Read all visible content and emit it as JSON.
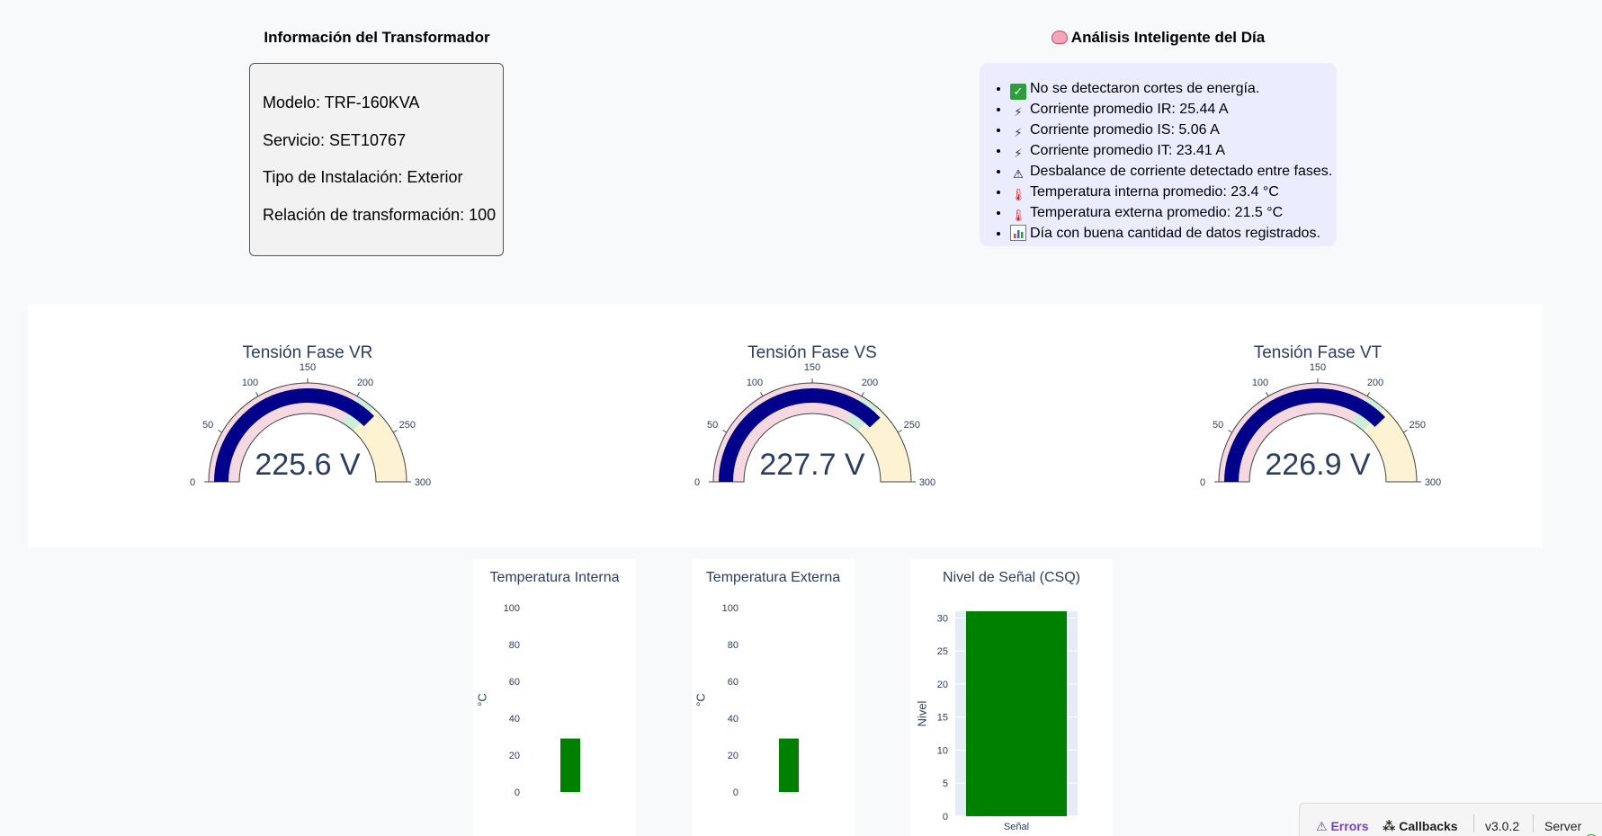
{
  "transformer": {
    "title": "Información del Transformador",
    "model": "Modelo: TRF-160KVA",
    "service": "Servicio: SET10767",
    "installation": "Tipo de Instalación: Exterior",
    "ratio": "Relación de transformación: 100"
  },
  "analysis": {
    "title_icon": "brain-icon",
    "title": "Análisis Inteligente del Día",
    "items": [
      {
        "icon": "check-icon",
        "text": "No se detectaron cortes de energía."
      },
      {
        "icon": "plug-icon",
        "text": "Corriente promedio IR: 25.44 A"
      },
      {
        "icon": "plug-icon",
        "text": "Corriente promedio IS: 5.06 A"
      },
      {
        "icon": "plug-icon",
        "text": "Corriente promedio IT: 23.41 A"
      },
      {
        "icon": "warning-icon",
        "text": "Desbalance de corriente detectado entre fases."
      },
      {
        "icon": "thermometer-icon",
        "text": "Temperatura interna promedio: 23.4 °C"
      },
      {
        "icon": "thermometer-icon",
        "text": "Temperatura externa promedio: 21.5 °C"
      },
      {
        "icon": "bar-chart-icon",
        "text": "Día con buena cantidad de datos registrados."
      }
    ]
  },
  "gauges": [
    {
      "title": "Tensión Fase VR",
      "value": 225.6,
      "display": "225.6 V"
    },
    {
      "title": "Tensión Fase VS",
      "value": 227.7,
      "display": "227.7 V"
    },
    {
      "title": "Tensión Fase VT",
      "value": 226.9,
      "display": "226.9 V"
    }
  ],
  "gauge_axis": {
    "range": [
      0,
      300
    ],
    "ticks": [
      0,
      50,
      100,
      150,
      200,
      250,
      300
    ],
    "steps": [
      {
        "range": [
          0,
          200
        ],
        "color": "#f6d8e0"
      },
      {
        "range": [
          200,
          220
        ],
        "color": "#cdeed8"
      },
      {
        "range": [
          220,
          300
        ],
        "color": "#fdf3d2"
      }
    ],
    "bar_color": "#00008b"
  },
  "chart_data": [
    {
      "type": "bar",
      "title": "Temperatura Interna",
      "ylabel": "°C",
      "ylim": [
        0,
        100
      ],
      "yticks": [
        0,
        20,
        40,
        60,
        80,
        100
      ],
      "values": [
        29
      ],
      "color": "#008000"
    },
    {
      "type": "bar",
      "title": "Temperatura Externa",
      "ylabel": "°C",
      "ylim": [
        0,
        100
      ],
      "yticks": [
        0,
        20,
        40,
        60,
        80,
        100
      ],
      "values": [
        29
      ],
      "color": "#008000"
    },
    {
      "type": "bar",
      "title": "Nivel de Señal (CSQ)",
      "ylabel": "Nivel",
      "categories": [
        "Señal"
      ],
      "ylim": [
        0,
        31
      ],
      "yticks": [
        0,
        5,
        10,
        15,
        20,
        25,
        30
      ],
      "values": [
        31
      ],
      "color": "#008000"
    }
  ],
  "devbar": {
    "errors": "Errors",
    "callbacks": "Callbacks",
    "version": "v3.0.2",
    "server": "Server"
  }
}
